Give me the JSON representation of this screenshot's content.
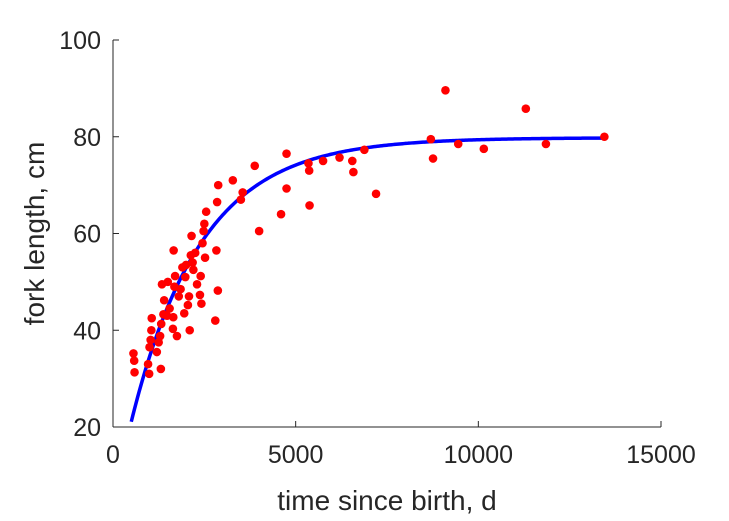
{
  "chart_data": {
    "type": "scatter",
    "title": "",
    "xlabel": "time since birth, d",
    "ylabel": "fork length, cm",
    "xlim": [
      0,
      15000
    ],
    "ylim": [
      20,
      100
    ],
    "xticks": [
      0,
      5000,
      10000,
      15000
    ],
    "yticks": [
      20,
      40,
      60,
      80,
      100
    ],
    "grid": false,
    "legend": "none",
    "colors": {
      "points": "#ff0000",
      "fit": "#0000ff",
      "axes": "#262626"
    },
    "series": [
      {
        "kind": "points",
        "points": [
          [
            560,
            35.2
          ],
          [
            580,
            33.7
          ],
          [
            590,
            31.3
          ],
          [
            960,
            33.0
          ],
          [
            990,
            31.0
          ],
          [
            1000,
            36.5
          ],
          [
            1030,
            38.0
          ],
          [
            1050,
            40.0
          ],
          [
            1060,
            42.5
          ],
          [
            1200,
            35.5
          ],
          [
            1250,
            37.5
          ],
          [
            1290,
            38.8
          ],
          [
            1310,
            32.0
          ],
          [
            1320,
            41.3
          ],
          [
            1340,
            49.5
          ],
          [
            1380,
            43.3
          ],
          [
            1400,
            46.2
          ],
          [
            1480,
            43.0
          ],
          [
            1500,
            50.0
          ],
          [
            1550,
            44.5
          ],
          [
            1640,
            40.3
          ],
          [
            1650,
            42.7
          ],
          [
            1660,
            56.5
          ],
          [
            1680,
            49.0
          ],
          [
            1700,
            51.2
          ],
          [
            1750,
            38.8
          ],
          [
            1800,
            47.0
          ],
          [
            1850,
            48.5
          ],
          [
            1900,
            53.0
          ],
          [
            1950,
            43.5
          ],
          [
            1980,
            51.0
          ],
          [
            2000,
            53.5
          ],
          [
            2050,
            45.2
          ],
          [
            2080,
            47.0
          ],
          [
            2100,
            40.0
          ],
          [
            2130,
            55.5
          ],
          [
            2150,
            59.5
          ],
          [
            2180,
            54.0
          ],
          [
            2200,
            52.5
          ],
          [
            2250,
            56.0
          ],
          [
            2300,
            49.5
          ],
          [
            2380,
            47.3
          ],
          [
            2400,
            51.2
          ],
          [
            2420,
            45.5
          ],
          [
            2450,
            58.0
          ],
          [
            2480,
            60.5
          ],
          [
            2500,
            62.0
          ],
          [
            2520,
            55.0
          ],
          [
            2550,
            64.5
          ],
          [
            2800,
            42.0
          ],
          [
            2830,
            56.5
          ],
          [
            2850,
            66.5
          ],
          [
            2870,
            48.2
          ],
          [
            2880,
            70.0
          ],
          [
            3280,
            71.0
          ],
          [
            3500,
            67.0
          ],
          [
            3550,
            68.5
          ],
          [
            3880,
            74.0
          ],
          [
            4000,
            60.5
          ],
          [
            4600,
            64.0
          ],
          [
            4750,
            76.5
          ],
          [
            4750,
            69.3
          ],
          [
            5350,
            74.5
          ],
          [
            5370,
            73.0
          ],
          [
            5380,
            65.8
          ],
          [
            5750,
            75.0
          ],
          [
            6200,
            75.7
          ],
          [
            6550,
            75.0
          ],
          [
            6580,
            72.7
          ],
          [
            6880,
            77.3
          ],
          [
            7200,
            68.2
          ],
          [
            8700,
            79.5
          ],
          [
            8760,
            75.5
          ],
          [
            9100,
            89.6
          ],
          [
            9450,
            78.5
          ],
          [
            10150,
            77.5
          ],
          [
            11300,
            85.8
          ],
          [
            11850,
            78.5
          ],
          [
            13450,
            80.0
          ]
        ]
      },
      {
        "kind": "fit-curve",
        "model": "von Bertalanffy",
        "Linf": 79.8,
        "k": 0.00052,
        "t0": -90,
        "x_range": [
          500,
          13450
        ]
      }
    ]
  }
}
